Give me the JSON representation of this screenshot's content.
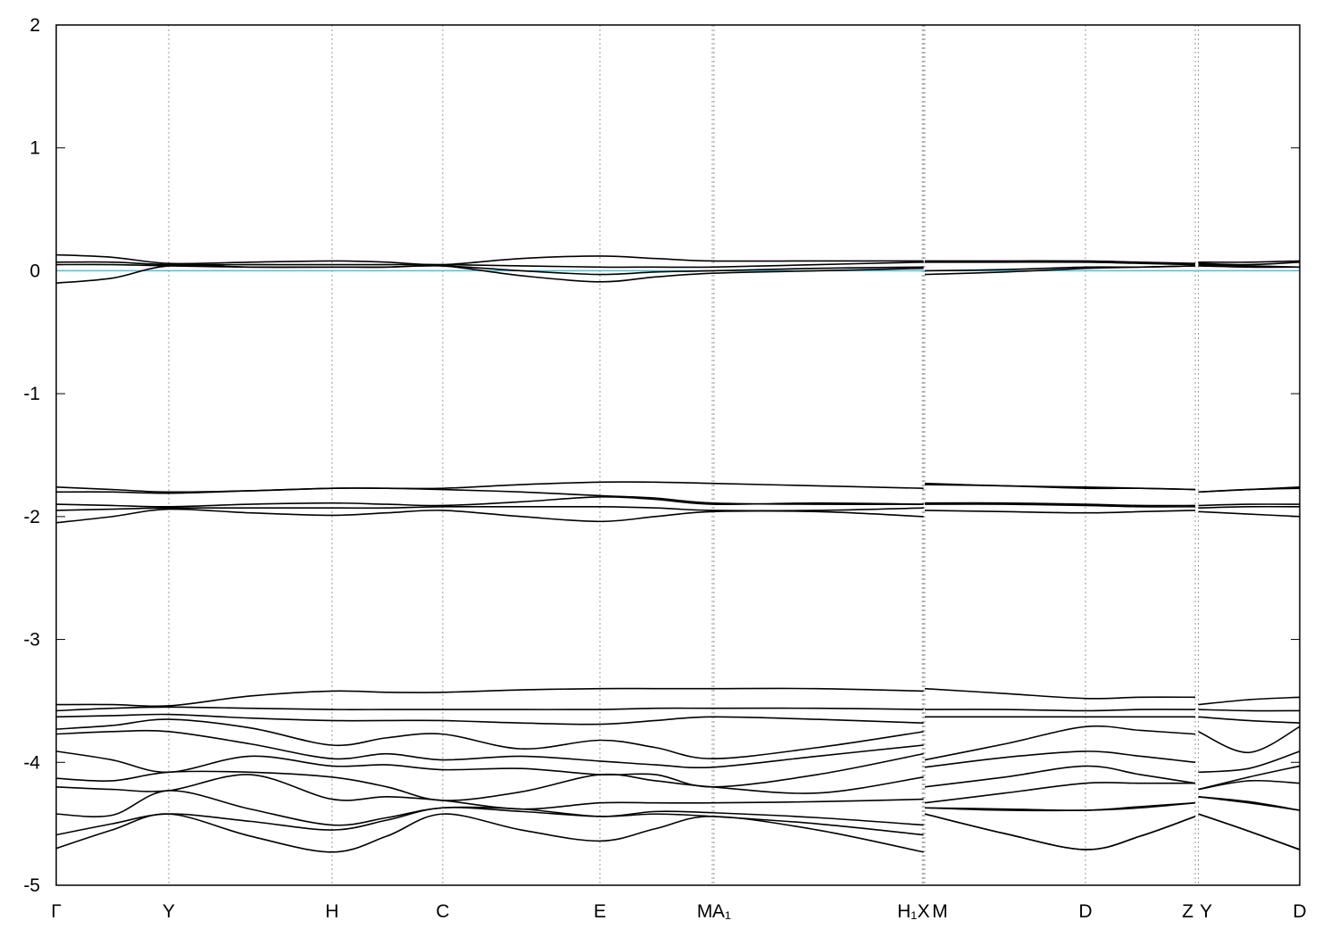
{
  "chart_data": {
    "type": "line",
    "xlim": [
      0,
      10
    ],
    "ylim": [
      -5,
      2
    ],
    "yticks": [
      -5,
      -4,
      -3,
      -2,
      -1,
      0,
      1,
      2
    ],
    "xticks": [
      {
        "value": 0,
        "label": "Γ"
      },
      {
        "value": 0.905,
        "label": "Y"
      },
      {
        "value": 2.218,
        "label": "H"
      },
      {
        "value": 3.108,
        "label": "C"
      },
      {
        "value": 4.372,
        "label": "E"
      },
      {
        "value": 5.276,
        "label": "M"
      },
      {
        "value": 5.29,
        "label": "A₁"
      },
      {
        "value": 6.965,
        "label": "H₁"
      },
      {
        "value": 6.975,
        "label": "X"
      },
      {
        "value": 6.985,
        "label": "M"
      },
      {
        "value": 8.277,
        "label": "D"
      },
      {
        "value": 9.16,
        "label": "Z"
      },
      {
        "value": 9.185,
        "label": "Y"
      },
      {
        "value": 10,
        "label": "D"
      }
    ],
    "grid": true,
    "reference_line": {
      "value": 0,
      "color": "#5fb8c8"
    },
    "x": [
      0,
      0.45,
      0.905,
      1.56,
      2.218,
      2.66,
      3.108,
      3.74,
      4.372,
      4.82,
      5.276,
      6.12,
      6.975,
      6.98,
      6.985,
      7.63,
      8.277,
      8.72,
      9.16,
      9.17,
      9.185,
      9.59,
      10
    ],
    "series": [
      {
        "color": "#000000",
        "values": [
          0.13,
          0.11,
          0.06,
          0.07,
          0.08,
          0.07,
          0.05,
          0.1,
          0.12,
          0.1,
          0.08,
          0.08,
          0.08,
          null,
          0.08,
          0.08,
          0.08,
          0.07,
          0.06,
          null,
          0.07,
          0.07,
          0.08
        ]
      },
      {
        "color": "#000000",
        "values": [
          0.07,
          0.07,
          0.05,
          0.05,
          0.05,
          0.05,
          0.05,
          0.04,
          0.03,
          0.03,
          0.03,
          0.05,
          0.07,
          null,
          0.07,
          0.07,
          0.07,
          0.06,
          0.05,
          null,
          0.06,
          0.05,
          0.07
        ]
      },
      {
        "color": "#000000",
        "values": [
          0.05,
          0.05,
          0.04,
          0.03,
          0.03,
          0.03,
          0.04,
          0.0,
          -0.03,
          -0.01,
          0.0,
          0.02,
          0.03,
          null,
          0.0,
          0.01,
          0.03,
          0.03,
          0.04,
          null,
          0.05,
          0.04,
          0.03
        ]
      },
      {
        "color": "#000000",
        "values": [
          -0.1,
          -0.06,
          0.04,
          0.03,
          0.03,
          0.03,
          0.04,
          -0.04,
          -0.09,
          -0.05,
          -0.02,
          0.0,
          0.02,
          null,
          -0.03,
          -0.01,
          0.02,
          0.03,
          0.04,
          null,
          0.04,
          0.03,
          0.03
        ]
      },
      {
        "color": "#000000",
        "values": [
          -1.76,
          -1.78,
          -1.8,
          -1.79,
          -1.77,
          -1.77,
          -1.77,
          -1.74,
          -1.72,
          -1.72,
          -1.73,
          -1.75,
          -1.77,
          null,
          -1.73,
          -1.75,
          -1.76,
          -1.77,
          -1.78,
          null,
          -1.8,
          -1.78,
          -1.76
        ]
      },
      {
        "color": "#000000",
        "values": [
          -1.8,
          -1.8,
          -1.81,
          -1.79,
          -1.77,
          -1.77,
          -1.78,
          -1.8,
          -1.83,
          -1.85,
          -1.89,
          -1.9,
          -1.9,
          null,
          -1.74,
          -1.75,
          -1.77,
          -1.77,
          -1.78,
          null,
          -1.8,
          -1.78,
          -1.77
        ]
      },
      {
        "color": "#000000",
        "values": [
          -1.9,
          -1.91,
          -1.92,
          -1.9,
          -1.89,
          -1.9,
          -1.91,
          -1.88,
          -1.84,
          -1.86,
          -1.9,
          -1.89,
          -1.9,
          null,
          -1.89,
          -1.89,
          -1.9,
          -1.91,
          -1.91,
          null,
          -1.91,
          -1.9,
          -1.9
        ]
      },
      {
        "color": "#000000",
        "values": [
          -1.95,
          -1.94,
          -1.93,
          -1.93,
          -1.93,
          -1.93,
          -1.92,
          -1.92,
          -1.92,
          -1.93,
          -1.95,
          -1.95,
          -1.93,
          null,
          -1.9,
          -1.9,
          -1.91,
          -1.92,
          -1.92,
          null,
          -1.93,
          -1.92,
          -1.92
        ]
      },
      {
        "color": "#000000",
        "values": [
          -2.05,
          -2.0,
          -1.94,
          -1.97,
          -1.99,
          -1.97,
          -1.95,
          -2.0,
          -2.04,
          -2.0,
          -1.96,
          -1.96,
          -2.0,
          null,
          -1.95,
          -1.96,
          -1.97,
          -1.96,
          -1.95,
          null,
          -1.96,
          -1.98,
          -2.0
        ]
      },
      {
        "color": "#000000",
        "values": [
          -3.53,
          -3.53,
          -3.54,
          -3.46,
          -3.42,
          -3.43,
          -3.43,
          -3.41,
          -3.4,
          -3.4,
          -3.4,
          -3.4,
          -3.42,
          null,
          -3.4,
          -3.44,
          -3.48,
          -3.47,
          -3.47,
          null,
          -3.53,
          -3.49,
          -3.47
        ]
      },
      {
        "color": "#000000",
        "values": [
          -3.58,
          -3.56,
          -3.55,
          -3.56,
          -3.57,
          -3.57,
          -3.57,
          -3.57,
          -3.57,
          -3.56,
          -3.56,
          -3.56,
          -3.57,
          null,
          -3.57,
          -3.57,
          -3.58,
          -3.57,
          -3.57,
          null,
          -3.57,
          -3.58,
          -3.58
        ]
      },
      {
        "color": "#000000",
        "values": [
          -3.63,
          -3.62,
          -3.61,
          -3.64,
          -3.66,
          -3.66,
          -3.66,
          -3.68,
          -3.69,
          -3.66,
          -3.63,
          -3.65,
          -3.68,
          null,
          -3.63,
          -3.63,
          -3.63,
          -3.63,
          -3.63,
          null,
          -3.63,
          -3.66,
          -3.68
        ]
      },
      {
        "color": "#000000",
        "values": [
          -3.73,
          -3.7,
          -3.65,
          -3.72,
          -3.86,
          -3.8,
          -3.77,
          -3.89,
          -3.82,
          -3.88,
          -3.97,
          -3.88,
          -3.75,
          null,
          -3.98,
          -3.85,
          -3.71,
          -3.74,
          -3.77,
          null,
          -3.75,
          -3.92,
          -3.71
        ]
      },
      {
        "color": "#000000",
        "values": [
          -3.77,
          -3.75,
          -3.75,
          -3.85,
          -3.97,
          -3.93,
          -3.98,
          -3.95,
          -3.99,
          -4.02,
          -4.04,
          -3.95,
          -3.86,
          null,
          -4.04,
          -3.96,
          -3.91,
          -3.95,
          -4.0,
          null,
          -4.08,
          -4.05,
          -3.91
        ]
      },
      {
        "color": "#000000",
        "values": [
          -3.91,
          -3.98,
          -4.08,
          -3.95,
          -4.03,
          -4.02,
          -4.06,
          -4.05,
          -4.1,
          -4.1,
          -4.2,
          -4.1,
          -3.93,
          null,
          -4.2,
          -4.12,
          -4.03,
          -4.1,
          -4.17,
          null,
          -4.22,
          -4.12,
          -4.03
        ]
      },
      {
        "color": "#000000",
        "values": [
          -4.13,
          -4.15,
          -4.08,
          -4.08,
          -4.12,
          -4.2,
          -4.31,
          -4.24,
          -4.1,
          -4.15,
          -4.2,
          -4.25,
          -4.12,
          null,
          -4.33,
          -4.25,
          -4.17,
          -4.17,
          -4.17,
          null,
          -4.22,
          -4.15,
          -4.17
        ]
      },
      {
        "color": "#000000",
        "values": [
          -4.2,
          -4.22,
          -4.23,
          -4.1,
          -4.3,
          -4.28,
          -4.31,
          -4.38,
          -4.33,
          -4.33,
          -4.33,
          -4.32,
          -4.3,
          null,
          -4.37,
          -4.38,
          -4.39,
          -4.36,
          -4.33,
          null,
          -4.28,
          -4.32,
          -4.39
        ]
      },
      {
        "color": "#000000",
        "values": [
          -4.42,
          -4.43,
          -4.23,
          -4.38,
          -4.51,
          -4.45,
          -4.37,
          -4.38,
          -4.44,
          -4.4,
          -4.41,
          -4.45,
          -4.51,
          null,
          -4.37,
          -4.39,
          -4.39,
          -4.37,
          -4.33,
          null,
          -4.28,
          -4.33,
          -4.39
        ]
      },
      {
        "color": "#000000",
        "values": [
          -4.59,
          -4.5,
          -4.42,
          -4.48,
          -4.55,
          -4.47,
          -4.37,
          -4.4,
          -4.44,
          -4.42,
          -4.44,
          -4.5,
          -4.59,
          null,
          -4.42,
          -4.58,
          -4.71,
          -4.6,
          -4.44,
          null,
          -4.42,
          -4.56,
          -4.71
        ]
      },
      {
        "color": "#000000",
        "values": [
          -4.7,
          -4.55,
          -4.42,
          -4.6,
          -4.73,
          -4.6,
          -4.42,
          -4.55,
          -4.64,
          -4.54,
          -4.44,
          -4.55,
          -4.73,
          null,
          -4.42,
          -4.58,
          -4.71,
          -4.6,
          -4.44,
          null,
          -4.42,
          -4.56,
          -4.71
        ]
      }
    ]
  }
}
